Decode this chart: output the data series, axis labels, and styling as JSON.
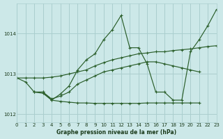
{
  "title": "Graphe pression niveau de la mer (hPa)",
  "bg_color": "#cce8e8",
  "grid_color": "#aacece",
  "line_color": "#2a5e2a",
  "text_color": "#1a3a1a",
  "xlim": [
    0,
    23
  ],
  "ylim": [
    1011.8,
    1014.75
  ],
  "yticks": [
    1012,
    1013,
    1014
  ],
  "xticks": [
    0,
    1,
    2,
    3,
    4,
    5,
    6,
    7,
    8,
    9,
    10,
    11,
    12,
    13,
    14,
    15,
    16,
    17,
    18,
    19,
    20,
    21,
    22,
    23
  ],
  "series": [
    {
      "x": [
        0,
        1,
        2,
        3,
        4,
        5,
        6,
        7,
        8,
        9,
        10,
        11,
        12,
        13,
        14,
        15,
        16,
        17,
        18,
        19,
        20,
        21,
        22,
        23
      ],
      "y": [
        1012.9,
        1012.8,
        1012.55,
        1012.55,
        1012.35,
        1012.5,
        1012.7,
        1013.1,
        1013.35,
        1013.5,
        1013.85,
        1014.1,
        1014.45,
        1013.65,
        1013.65,
        1013.25,
        1012.55,
        1012.55,
        1012.35,
        1012.35,
        1013.55,
        1013.85,
        1014.2,
        1014.6
      ]
    },
    {
      "x": [
        0,
        1,
        2,
        3,
        4,
        5,
        6,
        7,
        8,
        9,
        10,
        11,
        12,
        13,
        14,
        15,
        16,
        17,
        18,
        19,
        20,
        21,
        22,
        23
      ],
      "y": [
        1012.9,
        1012.9,
        1012.9,
        1012.9,
        1012.92,
        1012.95,
        1013.0,
        1013.05,
        1013.1,
        1013.2,
        1013.28,
        1013.35,
        1013.4,
        1013.45,
        1013.5,
        1013.52,
        1013.55,
        1013.55,
        1013.58,
        1013.6,
        1013.62,
        1013.65,
        1013.68,
        1013.7
      ]
    },
    {
      "x": [
        2,
        3,
        4,
        5,
        6,
        7,
        8,
        9,
        10,
        11,
        12,
        13,
        14,
        15,
        16,
        17,
        18,
        19,
        20,
        21
      ],
      "y": [
        1012.55,
        1012.55,
        1012.38,
        1012.45,
        1012.55,
        1012.75,
        1012.85,
        1012.95,
        1013.05,
        1013.1,
        1013.15,
        1013.2,
        1013.25,
        1013.3,
        1013.3,
        1013.25,
        1013.2,
        1013.15,
        1013.1,
        1013.05
      ]
    },
    {
      "x": [
        2,
        3,
        4,
        5,
        6,
        7,
        8,
        9,
        10,
        11,
        12,
        13,
        14,
        15,
        16,
        17,
        18,
        19,
        20,
        21
      ],
      "y": [
        1012.55,
        1012.52,
        1012.35,
        1012.32,
        1012.3,
        1012.28,
        1012.28,
        1012.27,
        1012.27,
        1012.27,
        1012.27,
        1012.27,
        1012.27,
        1012.28,
        1012.28,
        1012.28,
        1012.28,
        1012.28,
        1012.28,
        1012.28
      ]
    }
  ]
}
